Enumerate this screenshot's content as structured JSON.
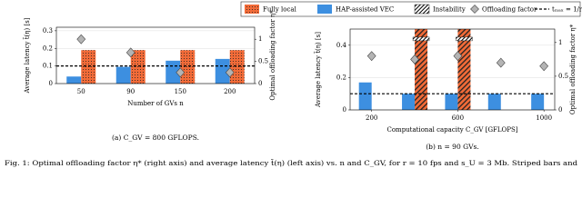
{
  "chart_data": [
    {
      "type": "bar",
      "caption": "(a) C_GV = 800 GFLOPS.",
      "xlabel": "Number of GVs n",
      "ylabel": "Average latency t̄(η) [s]",
      "y2label": "Optimal offloading factor η*",
      "categories": [
        "50",
        "90",
        "150",
        "200"
      ],
      "series": [
        {
          "name": "HAP-assisted VEC",
          "color": "#3d8fe0",
          "values": [
            0.04,
            0.095,
            0.13,
            0.14
          ]
        },
        {
          "name": "Fully local",
          "color": "#f26b38",
          "pattern": "dots",
          "values": [
            0.19,
            0.19,
            0.19,
            0.19
          ]
        },
        {
          "name": "Offloading factor",
          "color": "#b4b4b4",
          "axis": "y2",
          "values": [
            1.0,
            0.7,
            0.25,
            0.25
          ]
        }
      ],
      "hline": {
        "value": 0.1,
        "label": "tₘₐₓ = 1/r"
      },
      "ylim": [
        0,
        0.32
      ],
      "yticks": [
        0,
        0.1,
        0.2,
        0.3
      ],
      "y2lim": [
        0,
        1.27
      ],
      "y2ticks": [
        0,
        0.5,
        1
      ],
      "grid": true
    },
    {
      "type": "bar",
      "caption": "(b) n = 90 GVs.",
      "xlabel": "Computational capacity C_GV [GFLOPS]",
      "ylabel": "Average latency t̄(η) [s]",
      "y2label": "Optimal offloading factor η*",
      "x": [
        200,
        400,
        600,
        800,
        1000
      ],
      "series": [
        {
          "color": "#3d8fe0",
          "values": [
            0.17,
            0.1,
            0.1,
            0.1,
            0.1
          ]
        },
        {
          "name": "Instability",
          "color": "#f26b38",
          "pattern": "stripes",
          "values": [
            null,
            0.5,
            0.5,
            null,
            null
          ]
        },
        {
          "color": "#b4b4b4",
          "axis": "y2",
          "values": [
            0.8,
            0.75,
            0.8,
            0.7,
            0.65
          ]
        }
      ],
      "hline": {
        "value": 0.1
      },
      "xlim": [
        100,
        1050
      ],
      "xticks": [
        200,
        600,
        1000
      ],
      "ylim": [
        0,
        0.5
      ],
      "yticks": [
        0,
        0.2,
        0.4
      ],
      "y2lim": [
        0,
        1.2
      ],
      "y2ticks": [
        0,
        0.5,
        1
      ],
      "grid": true
    }
  ],
  "figure_caption": "Fig. 1: Optimal offloading factor η* (right axis) and average latency t̄(η) (left axis) vs. n and C_GV, for r = 10 fps and s_U = 3 Mb. Striped bars and"
}
